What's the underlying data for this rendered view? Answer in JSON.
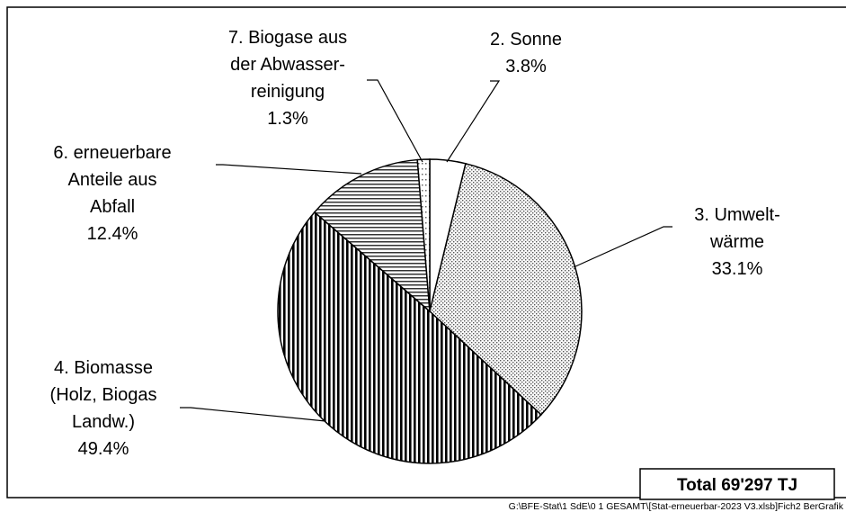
{
  "chart_data": {
    "type": "pie",
    "categories": [
      "2. Sonne",
      "3. Umwelt-\nwärme",
      "4. Biomasse\n(Holz, Biogas\nLandw.)",
      "6. erneuerbare\nAnteile aus\nAbfall",
      "7. Biogase aus\nder Abwasser-\nreinigung"
    ],
    "values": [
      3.8,
      33.1,
      49.4,
      12.4,
      1.3
    ],
    "value_labels": [
      "3.8%",
      "33.1%",
      "49.4%",
      "12.4%",
      "1.3%"
    ],
    "patterns": [
      "none",
      "dots",
      "vertical",
      "horizontal",
      "sparse-dots"
    ],
    "color": "#000000",
    "annotation": "Total  69'297 TJ",
    "footer": "G:\\BFE-Stat\\1 SdE\\0 1 GESAMT\\[Stat-erneuerbar-2023 V3.xlsb]Fich2   BerGrafik"
  }
}
